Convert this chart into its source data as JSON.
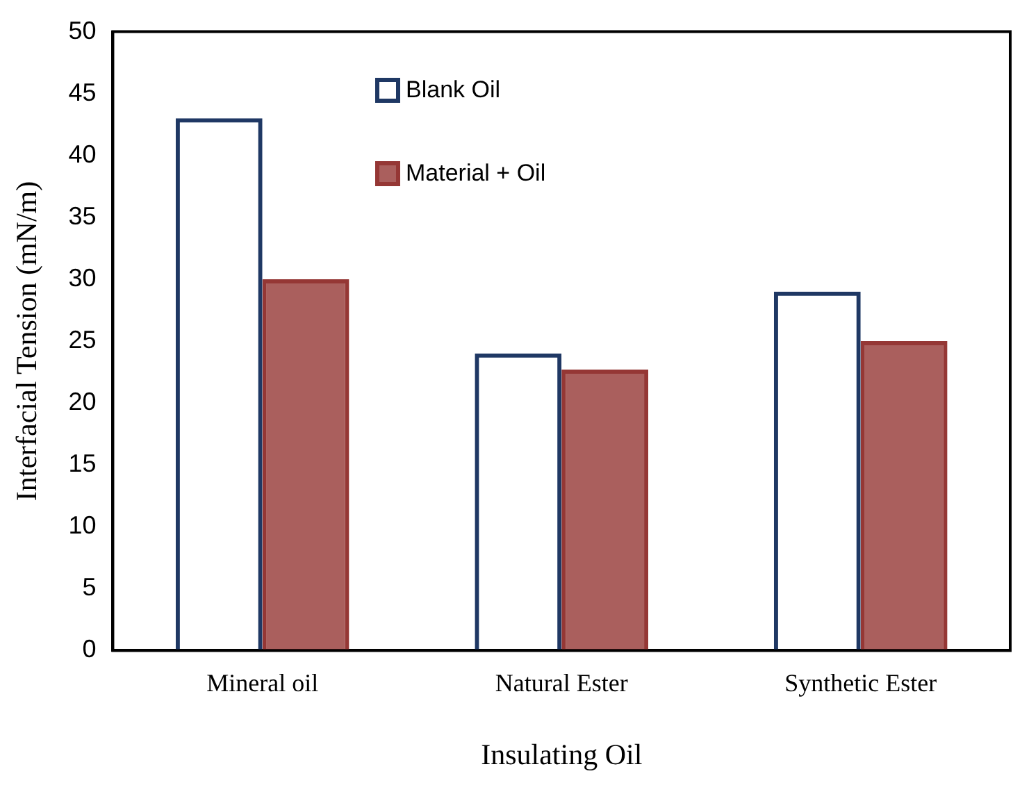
{
  "chart_data": {
    "type": "bar",
    "xlabel": "Insulating Oil",
    "ylabel": "Interfacial Tension (mN/m)",
    "categories": [
      "Mineral oil",
      "Natural Ester",
      "Synthetic Ester"
    ],
    "series": [
      {
        "name": "Blank Oil",
        "color": "#1f3864",
        "values": [
          43,
          24,
          29
        ]
      },
      {
        "name": "Material + Oil",
        "color": "#953735",
        "values": [
          30,
          22.7,
          25
        ]
      }
    ],
    "ylim": [
      0,
      50
    ],
    "yticks": [
      0,
      5,
      10,
      15,
      20,
      25,
      30,
      35,
      40,
      45,
      50
    ],
    "grid": false,
    "legend": "top left"
  }
}
